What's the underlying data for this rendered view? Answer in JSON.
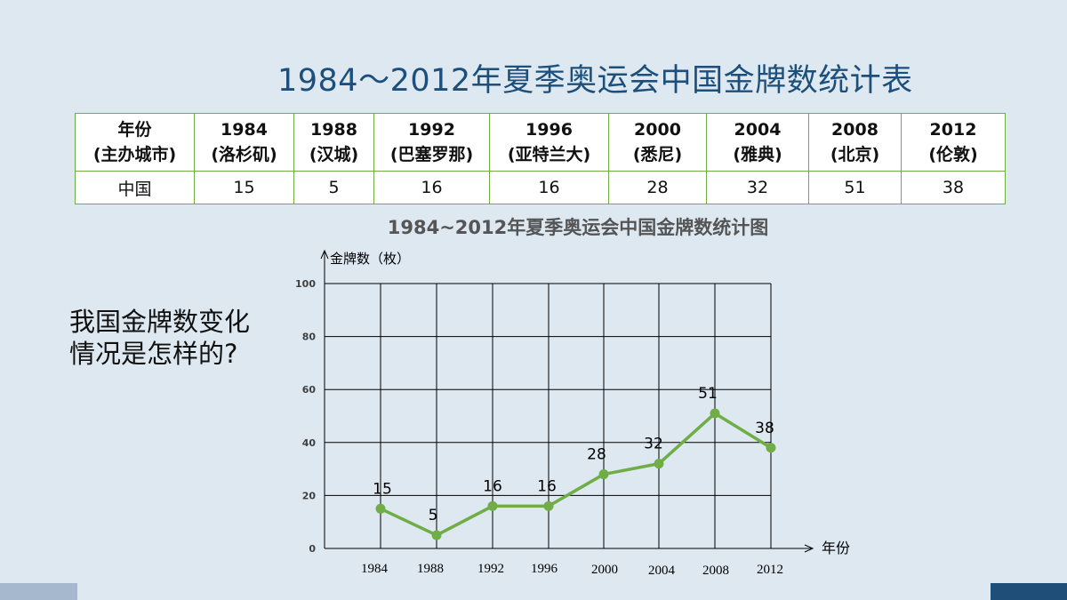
{
  "slide": {
    "title": "1984～2012年夏季奥运会中国金牌数统计表",
    "question_line1": "我国金牌数变化",
    "question_line2": "情况是怎样的?"
  },
  "table": {
    "header_label": [
      "年份",
      "(主办城市)"
    ],
    "columns": [
      {
        "year": "1984",
        "city": "(洛杉矶)",
        "value": "15"
      },
      {
        "year": "1988",
        "city": "(汉城)",
        "value": "5"
      },
      {
        "year": "1992",
        "city": "(巴塞罗那)",
        "value": "16"
      },
      {
        "year": "1996",
        "city": "(亚特兰大)",
        "value": "16"
      },
      {
        "year": "2000",
        "city": "(悉尼)",
        "value": "28"
      },
      {
        "year": "2004",
        "city": "(雅典)",
        "value": "32"
      },
      {
        "year": "2008",
        "city": "(北京)",
        "value": "51"
      },
      {
        "year": "2012",
        "city": "(伦敦)",
        "value": "38"
      }
    ],
    "row_label": "中国"
  },
  "chart_data": {
    "type": "line",
    "title": "1984~2012年夏季奥运会中国金牌数统计图",
    "ylabel": "金牌数（枚）",
    "xlabel": "年份",
    "categories": [
      "1984",
      "1988",
      "1992",
      "1996",
      "2000",
      "2004",
      "2008",
      "2012"
    ],
    "series": [
      {
        "values": [
          15,
          5,
          16,
          16,
          28,
          32,
          51,
          38
        ]
      }
    ],
    "ylim": [
      0,
      100
    ],
    "yticks": [
      0,
      20,
      40,
      60,
      80,
      100
    ],
    "grid": true,
    "data_labels": true
  },
  "colors": {
    "line": "#70ad47",
    "grid": "#000000",
    "title": "#1c4f7c",
    "table_border": "#70ad47"
  }
}
